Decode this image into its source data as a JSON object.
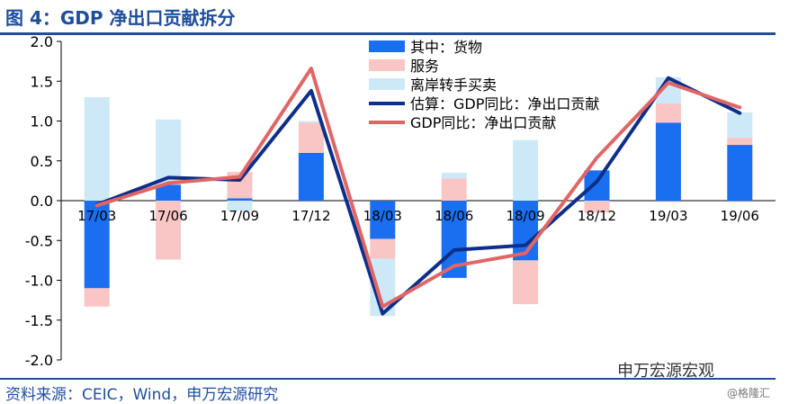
{
  "title": "图 4：GDP 净出口贡献拆分",
  "source": "资料来源：CEIC，Wind，申万宏源研究",
  "watermark": "申万宏源宏观",
  "watermark_small": "@格隆汇",
  "colors": {
    "goods": "#1a6ff0",
    "services": "#f9c5c5",
    "offshore": "#cde9f8",
    "estimate": "#0d2f8a",
    "actual": "#e06666",
    "frame": "#1f4e9c"
  },
  "chart_data": {
    "type": "bar",
    "stacked": true,
    "categories": [
      "17/03",
      "17/06",
      "17/09",
      "17/12",
      "18/03",
      "18/06",
      "18/09",
      "18/12",
      "19/03",
      "19/06"
    ],
    "yticks": [
      "2.0",
      "1.5",
      "1.0",
      "0.5",
      "0.0",
      "-0.5",
      "-1.0",
      "-1.5",
      "-2.0"
    ],
    "ylim": [
      -2.0,
      2.0
    ],
    "legend_position": "top-right",
    "series": [
      {
        "name": "其中：货物",
        "kind": "bar",
        "color": "#1a6ff0",
        "values": [
          -1.1,
          0.2,
          0.03,
          0.6,
          -0.48,
          -0.97,
          -0.75,
          0.38,
          0.98,
          0.7
        ]
      },
      {
        "name": "服务",
        "kind": "bar",
        "color": "#f9c5c5",
        "values": [
          -0.23,
          -0.74,
          0.33,
          0.38,
          -0.25,
          0.28,
          -0.55,
          -0.15,
          0.24,
          0.09
        ]
      },
      {
        "name": "离岸转手买卖",
        "kind": "bar",
        "color": "#cde9f8",
        "values": [
          1.3,
          0.82,
          -0.13,
          0.02,
          -0.72,
          0.07,
          0.76,
          0.0,
          0.33,
          0.32
        ]
      },
      {
        "name": "估算：GDP同比：净出口贡献",
        "kind": "line",
        "color": "#0d2f8a",
        "values": [
          -0.05,
          0.29,
          0.26,
          1.38,
          -1.42,
          -0.62,
          -0.56,
          0.24,
          1.54,
          1.1
        ]
      },
      {
        "name": "GDP同比：净出口贡献",
        "kind": "line",
        "color": "#e06666",
        "values": [
          -0.06,
          0.22,
          0.3,
          1.66,
          -1.33,
          -0.82,
          -0.66,
          0.54,
          1.48,
          1.17
        ]
      }
    ]
  }
}
